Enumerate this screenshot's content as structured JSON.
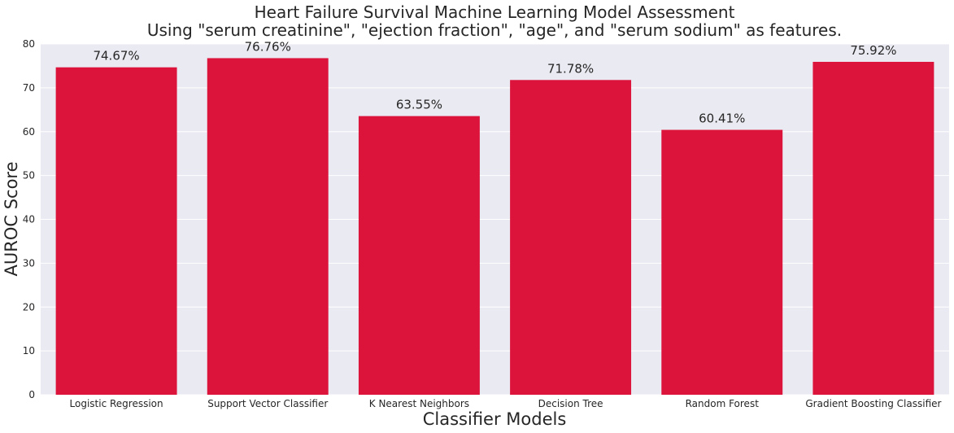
{
  "chart_data": {
    "type": "bar",
    "title": "Heart Failure Survival Machine Learning Model Assessment",
    "subtitle": "Using \"serum creatinine\", \"ejection fraction\", \"age\", and \"serum sodium\" as features.",
    "xlabel": "Classifier Models",
    "ylabel": "AUROC Score",
    "categories": [
      "Logistic Regression",
      "Support Vector Classifier",
      "K Nearest Neighbors",
      "Decision Tree",
      "Random Forest",
      "Gradient Boosting Classifier"
    ],
    "values": [
      74.67,
      76.76,
      63.55,
      71.78,
      60.41,
      75.92
    ],
    "data_labels": [
      "74.67%",
      "76.76%",
      "63.55%",
      "71.78%",
      "60.41%",
      "75.92%"
    ],
    "ylim": [
      0,
      80
    ],
    "yticks": [
      0,
      10,
      20,
      30,
      40,
      50,
      60,
      70,
      80
    ],
    "grid": true,
    "legend": "none",
    "colors": {
      "bar": "#dc143c",
      "plot_background": "#eaeaf2",
      "grid": "#ffffff",
      "text": "#262626"
    }
  }
}
